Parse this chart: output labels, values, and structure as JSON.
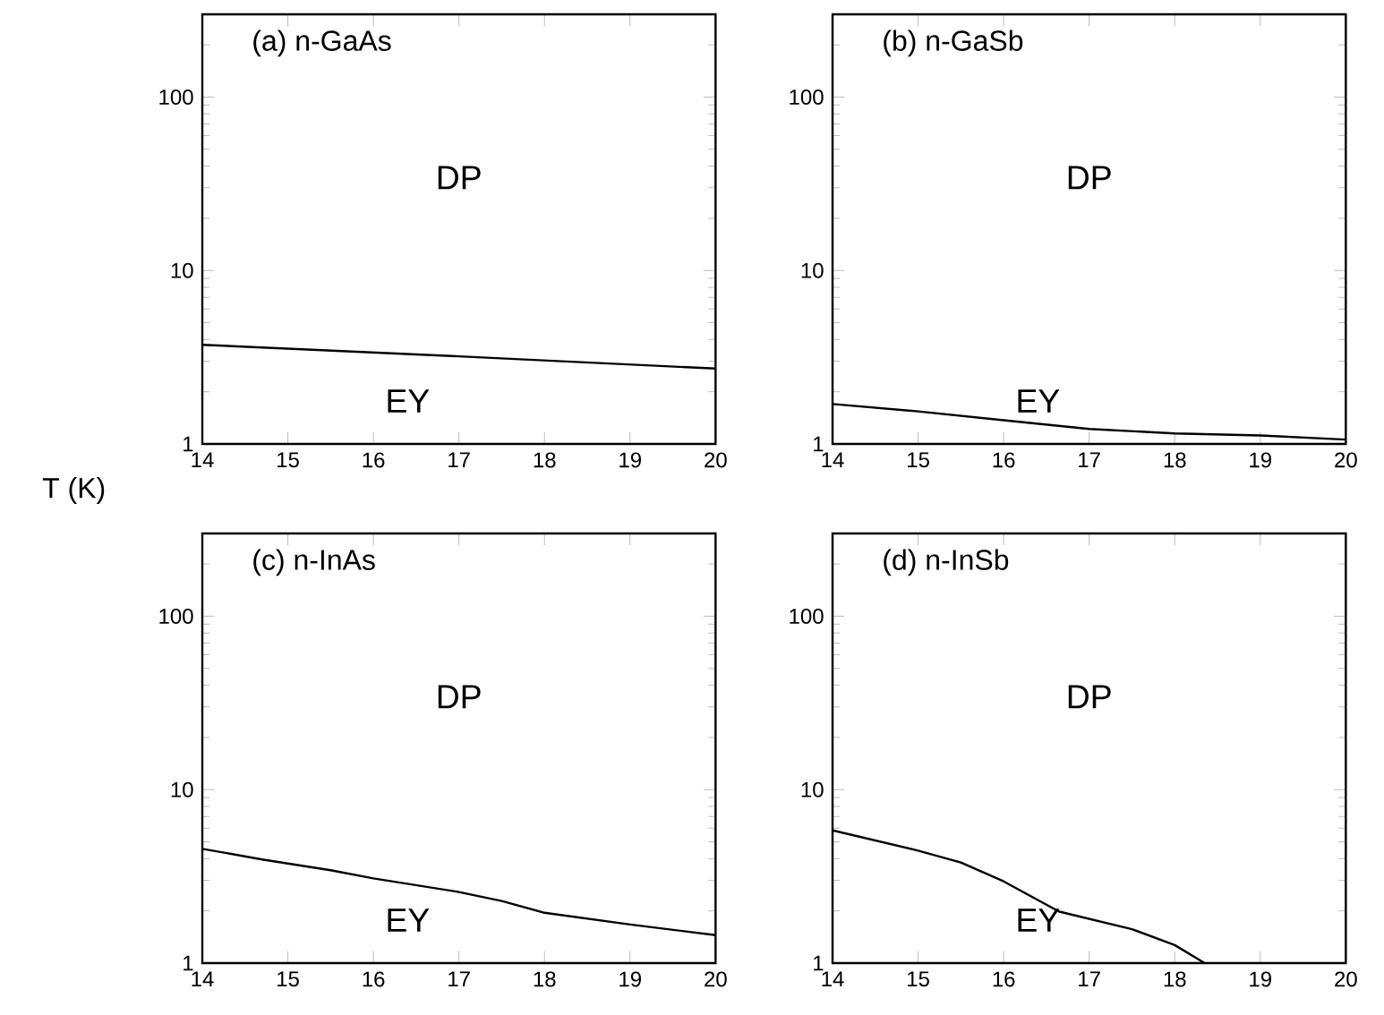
{
  "chart_data": [
    {
      "type": "line",
      "title": "(a) n-GaAs",
      "x": [
        14,
        17,
        20
      ],
      "xlim": [
        14,
        20
      ],
      "xticks": [
        14,
        15,
        16,
        17,
        18,
        19,
        20
      ],
      "ylim": [
        1,
        300
      ],
      "yticks": [
        1,
        10,
        100
      ],
      "log": "y",
      "series": [
        {
          "color": "#000000",
          "values": [
            3.73,
            3.2,
            2.72
          ]
        }
      ],
      "annotations": [
        "DP",
        "EY"
      ]
    },
    {
      "type": "line",
      "title": "(b) n-GaSb",
      "x": [
        14,
        15,
        16,
        17,
        18,
        19,
        20
      ],
      "xlim": [
        14,
        20
      ],
      "xticks": [
        14,
        15,
        16,
        17,
        18,
        19,
        20
      ],
      "ylim": [
        1,
        300
      ],
      "yticks": [
        1,
        10,
        100
      ],
      "log": "y",
      "series": [
        {
          "color": "#000000",
          "values": [
            1.7,
            1.54,
            1.37,
            1.22,
            1.15,
            1.12,
            1.06
          ]
        }
      ],
      "annotations": [
        "DP",
        "EY"
      ]
    },
    {
      "type": "line",
      "title": "(c) n-InAs",
      "ylabel": "T (K)",
      "x": [
        14,
        14.7,
        15.5,
        16,
        17,
        17.5,
        18,
        19,
        20
      ],
      "xlim": [
        14,
        20
      ],
      "xticks": [
        14,
        15,
        16,
        17,
        18,
        19,
        20
      ],
      "ylim": [
        1,
        300
      ],
      "yticks": [
        1,
        10,
        100
      ],
      "log": "y",
      "series": [
        {
          "color": "#000000",
          "values": [
            4.56,
            3.96,
            3.43,
            3.08,
            2.57,
            2.28,
            1.95,
            1.67,
            1.45
          ]
        }
      ],
      "annotations": [
        "DP",
        "EY"
      ]
    },
    {
      "type": "line",
      "title": "(d) n-InSb",
      "x": [
        14,
        15,
        15.5,
        16,
        16.65,
        17.5,
        18,
        18.35
      ],
      "xlim": [
        14,
        20
      ],
      "xticks": [
        14,
        15,
        16,
        17,
        18,
        19,
        20
      ],
      "ylim": [
        1,
        300
      ],
      "yticks": [
        1,
        10,
        100
      ],
      "log": "y",
      "series": [
        {
          "color": "#000000",
          "values": [
            5.82,
            4.45,
            3.8,
            2.96,
            1.98,
            1.57,
            1.27,
            1.0
          ]
        }
      ],
      "annotations": [
        "DP",
        "EY"
      ]
    }
  ]
}
